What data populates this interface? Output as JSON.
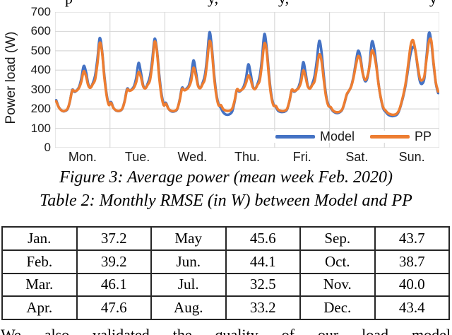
{
  "page": {
    "top_clipped_fragments": [
      "p",
      "y,",
      "y,",
      "y"
    ],
    "bottom_clipped_text": "We also validated the quality of our load model"
  },
  "figure_caption": "Figure 3: Average power (mean week Feb. 2020)",
  "table_caption": "Table 2: Monthly RMSE (in W) between Model and PP",
  "chart_data": {
    "type": "line",
    "title": "",
    "xlabel": "",
    "ylabel": "Power load (W)",
    "ylim": [
      0,
      700
    ],
    "y_ticks": [
      0,
      100,
      200,
      300,
      400,
      500,
      600,
      700
    ],
    "x_categories": [
      "Mon.",
      "Tue.",
      "Wed.",
      "Thu.",
      "Fri.",
      "Sat.",
      "Sun."
    ],
    "points_per_day": 24,
    "grid": true,
    "legend_position": "inside-bottom-right",
    "colors": {
      "model": "#4472C4",
      "pp": "#ED7D31",
      "gridline": "#D9D9D9"
    },
    "series": [
      {
        "name": "Model",
        "values": [
          245,
          212,
          196,
          188,
          190,
          200,
          240,
          298,
          288,
          296,
          314,
          358,
          421,
          392,
          328,
          311,
          333,
          372,
          455,
          565,
          505,
          378,
          278,
          228,
          235,
          206,
          193,
          189,
          191,
          203,
          246,
          304,
          294,
          301,
          317,
          362,
          437,
          390,
          322,
          308,
          331,
          369,
          452,
          561,
          508,
          382,
          280,
          228,
          231,
          203,
          190,
          186,
          189,
          201,
          249,
          309,
          297,
          305,
          321,
          370,
          450,
          398,
          324,
          309,
          334,
          374,
          468,
          595,
          522,
          385,
          280,
          224,
          205,
          183,
          172,
          170,
          174,
          189,
          238,
          299,
          289,
          298,
          316,
          360,
          430,
          383,
          317,
          304,
          329,
          369,
          462,
          586,
          518,
          382,
          277,
          224,
          210,
          191,
          185,
          184,
          187,
          199,
          241,
          297,
          289,
          297,
          314,
          358,
          441,
          388,
          320,
          307,
          331,
          371,
          455,
          551,
          495,
          370,
          272,
          222,
          206,
          189,
          181,
          179,
          183,
          195,
          228,
          272,
          293,
          318,
          368,
          438,
          500,
          468,
          388,
          344,
          358,
          428,
          545,
          515,
          425,
          325,
          252,
          202,
          186,
          172,
          166,
          163,
          165,
          171,
          193,
          232,
          278,
          338,
          418,
          488,
          520,
          502,
          418,
          344,
          330,
          362,
          480,
          592,
          545,
          430,
          332,
          282
        ]
      },
      {
        "name": "PP",
        "values": [
          240,
          210,
          195,
          189,
          191,
          202,
          240,
          295,
          291,
          295,
          309,
          342,
          394,
          370,
          321,
          309,
          328,
          352,
          432,
          540,
          498,
          368,
          271,
          221,
          231,
          205,
          194,
          190,
          192,
          204,
          243,
          299,
          294,
          298,
          310,
          340,
          390,
          366,
          317,
          306,
          325,
          349,
          430,
          545,
          500,
          366,
          268,
          219,
          227,
          202,
          192,
          189,
          191,
          203,
          245,
          303,
          296,
          301,
          313,
          345,
          412,
          376,
          319,
          307,
          328,
          355,
          442,
          549,
          505,
          370,
          270,
          219,
          220,
          199,
          192,
          190,
          192,
          203,
          243,
          300,
          293,
          298,
          308,
          335,
          372,
          352,
          311,
          303,
          324,
          348,
          435,
          537,
          500,
          366,
          267,
          218,
          216,
          197,
          191,
          189,
          191,
          202,
          242,
          298,
          292,
          297,
          308,
          336,
          398,
          365,
          316,
          305,
          324,
          344,
          415,
          481,
          450,
          350,
          262,
          216,
          210,
          192,
          185,
          183,
          186,
          197,
          230,
          275,
          294,
          316,
          362,
          424,
          472,
          452,
          385,
          350,
          366,
          422,
          500,
          480,
          415,
          322,
          254,
          207,
          192,
          179,
          173,
          170,
          171,
          177,
          196,
          236,
          284,
          348,
          438,
          528,
          555,
          505,
          428,
          358,
          348,
          372,
          465,
          548,
          552,
          438,
          336,
          290
        ]
      }
    ]
  },
  "rmse_table": {
    "rows": [
      [
        "Jan.",
        "37.2",
        "May",
        "45.6",
        "Sep.",
        "43.7"
      ],
      [
        "Feb.",
        "39.2",
        "Jun.",
        "44.1",
        "Oct.",
        "38.7"
      ],
      [
        "Mar.",
        "46.1",
        "Jul.",
        "32.5",
        "Nov.",
        "40.0"
      ],
      [
        "Apr.",
        "47.6",
        "Aug.",
        "33.2",
        "Dec.",
        "43.4"
      ]
    ]
  }
}
